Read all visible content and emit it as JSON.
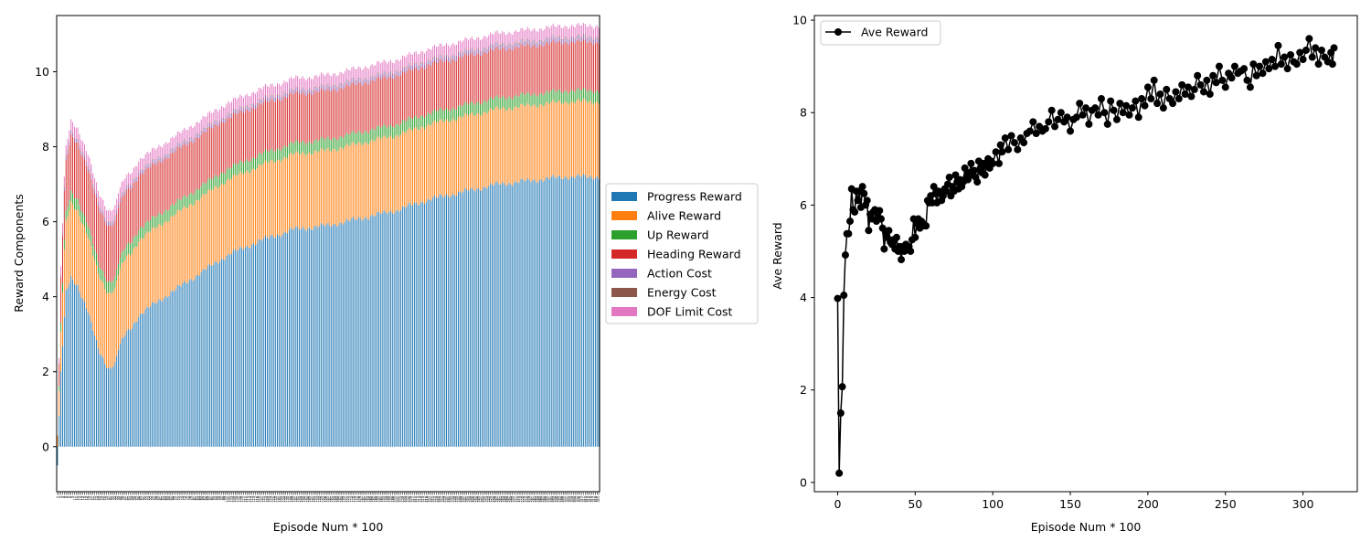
{
  "chart_data": [
    {
      "type": "bar",
      "stacked": true,
      "xlabel": "Episode Num * 100",
      "ylabel": "Reward Components",
      "ylim": [
        -1.2,
        11.5
      ],
      "yticks": [
        0,
        2,
        4,
        6,
        8,
        10
      ],
      "xrange": [
        0,
        320
      ],
      "legend_position": "outside-right",
      "grid": false,
      "series": [
        {
          "name": "Progress Reward",
          "color": "#1f77b4",
          "knots": [
            [
              0,
              -0.5
            ],
            [
              2,
              2.0
            ],
            [
              5,
              4.1
            ],
            [
              8,
              4.5
            ],
            [
              12,
              4.3
            ],
            [
              18,
              3.6
            ],
            [
              24,
              2.6
            ],
            [
              30,
              2.1
            ],
            [
              34,
              2.2
            ],
            [
              36,
              2.6
            ],
            [
              40,
              3.0
            ],
            [
              44,
              3.2
            ],
            [
              48,
              3.5
            ],
            [
              60,
              3.9
            ],
            [
              80,
              4.5
            ],
            [
              100,
              5.1
            ],
            [
              120,
              5.5
            ],
            [
              140,
              5.8
            ],
            [
              160,
              5.9
            ],
            [
              180,
              6.1
            ],
            [
              200,
              6.3
            ],
            [
              220,
              6.6
            ],
            [
              240,
              6.8
            ],
            [
              260,
              7.0
            ],
            [
              280,
              7.1
            ],
            [
              300,
              7.2
            ],
            [
              320,
              7.2
            ]
          ]
        },
        {
          "name": "Alive Reward",
          "color": "#ff7f0e",
          "knots": [
            [
              0,
              0.3
            ],
            [
              4,
              1.8
            ],
            [
              8,
              2.0
            ],
            [
              30,
              2.0
            ],
            [
              320,
              2.0
            ]
          ]
        },
        {
          "name": "Up Reward",
          "color": "#2ca02c",
          "knots": [
            [
              0,
              0.0
            ],
            [
              2,
              0.25
            ],
            [
              10,
              0.3
            ],
            [
              320,
              0.3
            ]
          ]
        },
        {
          "name": "Heading Reward",
          "color": "#d62728",
          "knots": [
            [
              0,
              0.0
            ],
            [
              2,
              1.2
            ],
            [
              8,
              1.5
            ],
            [
              30,
              1.5
            ],
            [
              60,
              1.4
            ],
            [
              100,
              1.35
            ],
            [
              150,
              1.3
            ],
            [
              200,
              1.3
            ],
            [
              250,
              1.3
            ],
            [
              320,
              1.3
            ]
          ]
        },
        {
          "name": "Action Cost",
          "color": "#9467bd",
          "knots": [
            [
              0,
              0.0
            ],
            [
              4,
              0.08
            ],
            [
              320,
              0.1
            ]
          ]
        },
        {
          "name": "Energy Cost",
          "color": "#8c564b",
          "knots": [
            [
              0,
              0.0
            ],
            [
              4,
              0.02
            ],
            [
              320,
              0.03
            ]
          ]
        },
        {
          "name": "DOF Limit Cost",
          "color": "#e377c2",
          "knots": [
            [
              0,
              0.0
            ],
            [
              2,
              0.25
            ],
            [
              6,
              0.3
            ],
            [
              320,
              0.3
            ]
          ]
        }
      ]
    },
    {
      "type": "line",
      "xlabel": "Episode Num * 100",
      "ylabel": "Ave Reward",
      "xlim": [
        -15,
        335
      ],
      "ylim": [
        -0.2,
        10.1
      ],
      "xticks": [
        0,
        50,
        100,
        150,
        200,
        250,
        300
      ],
      "yticks": [
        0,
        2,
        4,
        6,
        8,
        10
      ],
      "legend_position": "upper-left",
      "grid": false,
      "series": [
        {
          "name": "Ave Reward",
          "color": "#000000",
          "marker": "circle",
          "points": [
            [
              0,
              3.98
            ],
            [
              1,
              0.2
            ],
            [
              2,
              1.5
            ],
            [
              3,
              2.07
            ],
            [
              4,
              4.05
            ],
            [
              5,
              4.92
            ],
            [
              6,
              5.38
            ],
            [
              7,
              5.38
            ],
            [
              8,
              5.65
            ],
            [
              9,
              6.35
            ],
            [
              10,
              5.9
            ],
            [
              11,
              5.85
            ],
            [
              12,
              6.3
            ],
            [
              13,
              6.1
            ],
            [
              14,
              6.3
            ],
            [
              15,
              5.95
            ],
            [
              16,
              6.4
            ],
            [
              17,
              6.25
            ],
            [
              18,
              6.0
            ],
            [
              19,
              6.1
            ],
            [
              20,
              5.45
            ],
            [
              21,
              5.8
            ],
            [
              22,
              5.7
            ],
            [
              23,
              5.85
            ],
            [
              24,
              5.9
            ],
            [
              25,
              5.65
            ],
            [
              26,
              5.75
            ],
            [
              27,
              5.88
            ],
            [
              28,
              5.7
            ],
            [
              29,
              5.5
            ],
            [
              30,
              5.05
            ],
            [
              31,
              5.4
            ],
            [
              32,
              5.3
            ],
            [
              33,
              5.45
            ],
            [
              34,
              5.2
            ],
            [
              35,
              5.15
            ],
            [
              36,
              5.25
            ],
            [
              37,
              5.05
            ],
            [
              38,
              5.3
            ],
            [
              39,
              5.0
            ],
            [
              40,
              5.1
            ],
            [
              41,
              4.82
            ],
            [
              42,
              5.1
            ],
            [
              43,
              5.0
            ],
            [
              44,
              5.15
            ],
            [
              45,
              5.05
            ],
            [
              46,
              5.1
            ],
            [
              47,
              5.0
            ],
            [
              48,
              5.25
            ],
            [
              49,
              5.7
            ],
            [
              50,
              5.3
            ],
            [
              51,
              5.6
            ],
            [
              52,
              5.7
            ],
            [
              53,
              5.5
            ],
            [
              54,
              5.65
            ],
            [
              55,
              5.6
            ],
            [
              56,
              5.55
            ],
            [
              57,
              5.55
            ],
            [
              58,
              6.1
            ],
            [
              59,
              6.05
            ],
            [
              60,
              6.2
            ],
            [
              61,
              6.05
            ],
            [
              62,
              6.4
            ],
            [
              63,
              6.25
            ],
            [
              64,
              6.05
            ],
            [
              65,
              6.3
            ],
            [
              66,
              6.25
            ],
            [
              67,
              6.1
            ],
            [
              68,
              6.2
            ],
            [
              69,
              6.35
            ],
            [
              70,
              6.3
            ],
            [
              71,
              6.45
            ],
            [
              72,
              6.6
            ],
            [
              73,
              6.2
            ],
            [
              74,
              6.4
            ],
            [
              75,
              6.3
            ],
            [
              76,
              6.65
            ],
            [
              77,
              6.5
            ],
            [
              78,
              6.35
            ],
            [
              79,
              6.55
            ],
            [
              80,
              6.4
            ],
            [
              81,
              6.5
            ],
            [
              82,
              6.8
            ],
            [
              83,
              6.6
            ],
            [
              84,
              6.55
            ],
            [
              85,
              6.7
            ],
            [
              86,
              6.9
            ],
            [
              87,
              6.65
            ],
            [
              88,
              6.75
            ],
            [
              89,
              6.6
            ],
            [
              90,
              6.5
            ],
            [
              91,
              6.95
            ],
            [
              92,
              6.8
            ],
            [
              93,
              6.7
            ],
            [
              94,
              6.9
            ],
            [
              95,
              6.65
            ],
            [
              96,
              6.85
            ],
            [
              97,
              7.0
            ],
            [
              98,
              6.8
            ],
            [
              99,
              6.95
            ],
            [
              100,
              6.9
            ],
            [
              102,
              7.15
            ],
            [
              104,
              6.9
            ],
            [
              105,
              7.3
            ],
            [
              106,
              7.15
            ],
            [
              108,
              7.45
            ],
            [
              110,
              7.2
            ],
            [
              112,
              7.5
            ],
            [
              114,
              7.35
            ],
            [
              116,
              7.2
            ],
            [
              118,
              7.45
            ],
            [
              120,
              7.35
            ],
            [
              122,
              7.55
            ],
            [
              124,
              7.6
            ],
            [
              126,
              7.8
            ],
            [
              128,
              7.55
            ],
            [
              130,
              7.7
            ],
            [
              132,
              7.6
            ],
            [
              134,
              7.65
            ],
            [
              136,
              7.8
            ],
            [
              138,
              8.05
            ],
            [
              140,
              7.7
            ],
            [
              142,
              7.85
            ],
            [
              144,
              8.0
            ],
            [
              146,
              7.8
            ],
            [
              148,
              7.9
            ],
            [
              150,
              7.6
            ],
            [
              152,
              7.85
            ],
            [
              154,
              7.9
            ],
            [
              156,
              8.2
            ],
            [
              158,
              7.95
            ],
            [
              160,
              8.1
            ],
            [
              162,
              7.75
            ],
            [
              164,
              8.05
            ],
            [
              166,
              8.1
            ],
            [
              168,
              7.95
            ],
            [
              170,
              8.3
            ],
            [
              172,
              8.0
            ],
            [
              174,
              7.75
            ],
            [
              176,
              8.25
            ],
            [
              178,
              8.05
            ],
            [
              180,
              7.85
            ],
            [
              182,
              8.2
            ],
            [
              184,
              8.0
            ],
            [
              186,
              8.15
            ],
            [
              188,
              7.95
            ],
            [
              190,
              8.1
            ],
            [
              192,
              8.25
            ],
            [
              194,
              7.9
            ],
            [
              196,
              8.3
            ],
            [
              198,
              8.15
            ],
            [
              200,
              8.55
            ],
            [
              202,
              8.3
            ],
            [
              204,
              8.7
            ],
            [
              206,
              8.2
            ],
            [
              208,
              8.4
            ],
            [
              210,
              8.1
            ],
            [
              212,
              8.5
            ],
            [
              214,
              8.3
            ],
            [
              216,
              8.2
            ],
            [
              218,
              8.45
            ],
            [
              220,
              8.3
            ],
            [
              222,
              8.6
            ],
            [
              224,
              8.4
            ],
            [
              226,
              8.55
            ],
            [
              228,
              8.35
            ],
            [
              230,
              8.5
            ],
            [
              232,
              8.8
            ],
            [
              234,
              8.6
            ],
            [
              236,
              8.45
            ],
            [
              238,
              8.7
            ],
            [
              240,
              8.4
            ],
            [
              242,
              8.8
            ],
            [
              244,
              8.65
            ],
            [
              246,
              9.0
            ],
            [
              248,
              8.7
            ],
            [
              250,
              8.55
            ],
            [
              252,
              8.85
            ],
            [
              254,
              8.75
            ],
            [
              256,
              9.0
            ],
            [
              258,
              8.85
            ],
            [
              260,
              8.9
            ],
            [
              262,
              8.95
            ],
            [
              264,
              8.7
            ],
            [
              266,
              8.55
            ],
            [
              268,
              9.05
            ],
            [
              270,
              8.8
            ],
            [
              272,
              9.0
            ],
            [
              274,
              8.85
            ],
            [
              276,
              9.1
            ],
            [
              278,
              8.95
            ],
            [
              280,
              9.15
            ],
            [
              282,
              9.0
            ],
            [
              284,
              9.45
            ],
            [
              286,
              9.05
            ],
            [
              288,
              9.2
            ],
            [
              290,
              8.95
            ],
            [
              292,
              9.25
            ],
            [
              294,
              9.1
            ],
            [
              296,
              9.05
            ],
            [
              298,
              9.3
            ],
            [
              300,
              9.15
            ],
            [
              302,
              9.35
            ],
            [
              304,
              9.6
            ],
            [
              306,
              9.2
            ],
            [
              308,
              9.4
            ],
            [
              310,
              9.05
            ],
            [
              312,
              9.35
            ],
            [
              314,
              9.2
            ],
            [
              316,
              9.1
            ],
            [
              318,
              9.3
            ],
            [
              319,
              9.05
            ],
            [
              320,
              9.4
            ]
          ]
        }
      ]
    }
  ]
}
